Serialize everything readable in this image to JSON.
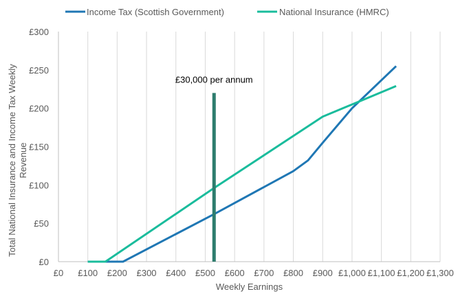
{
  "chart_data": {
    "type": "line",
    "xlabel": "Weekly Earnings",
    "ylabel": "Total National Insurance and Income Tax Weekly Revenue",
    "xlim": [
      0,
      1300
    ],
    "ylim": [
      0,
      300
    ],
    "x_ticks": [
      0,
      100,
      200,
      300,
      400,
      500,
      600,
      700,
      800,
      900,
      1000,
      1100,
      1200,
      1300
    ],
    "x_tick_labels": [
      "£0",
      "£100",
      "£200",
      "£300",
      "£400",
      "£500",
      "£600",
      "£700",
      "£800",
      "£900",
      "£1,000",
      "£1,100",
      "£1,200",
      "£1,300"
    ],
    "y_ticks": [
      0,
      50,
      100,
      150,
      200,
      250,
      300
    ],
    "y_tick_labels": [
      "£0",
      "£50",
      "£100",
      "£150",
      "£200",
      "£250",
      "£300"
    ],
    "grid": "vertical",
    "legend_position": "top",
    "series": [
      {
        "name": "Income Tax (Scottish Government)",
        "color": "#1f77b4",
        "x": [
          100,
          160,
          220,
          530,
          800,
          850,
          900,
          1000,
          1150
        ],
        "y": [
          0,
          0,
          0,
          62,
          118,
          132,
          155,
          200,
          255
        ]
      },
      {
        "name": "National Insurance (HMRC)",
        "color": "#1abc9c",
        "x": [
          100,
          160,
          530,
          900,
          1150
        ],
        "y": [
          0,
          0,
          96,
          189,
          229
        ]
      }
    ],
    "annotations": [
      {
        "text": "£30,000 per annum",
        "x": 530,
        "y_from": 0,
        "y_to": 220,
        "color": "#2e7d6e"
      }
    ]
  }
}
